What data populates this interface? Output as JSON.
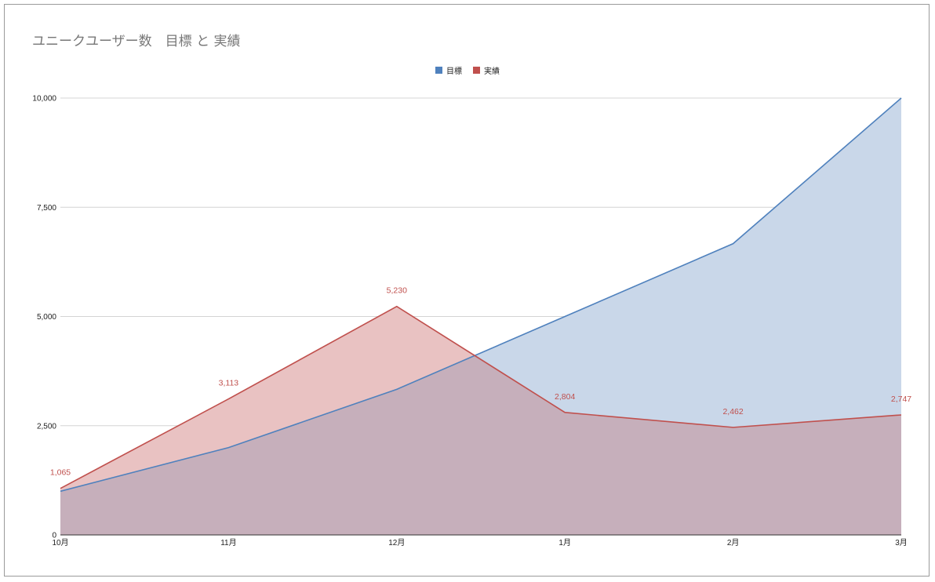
{
  "chart_data": {
    "type": "area",
    "title": "ユニークユーザー数　目標 と 実績",
    "categories": [
      "10月",
      "11月",
      "12月",
      "1月",
      "2月",
      "3月"
    ],
    "ylim": [
      0,
      10000
    ],
    "yticks": [
      0,
      2500,
      5000,
      7500,
      10000
    ],
    "ytick_labels": [
      "0",
      "2,500",
      "5,000",
      "7,500",
      "10,000"
    ],
    "grid": true,
    "legend_position": "top-center",
    "series": [
      {
        "name": "目標",
        "color": "#4f81bd",
        "fill": "#c9d7e9",
        "values": [
          1000,
          2000,
          3333,
          5000,
          6667,
          10000
        ],
        "show_labels": false,
        "labels": []
      },
      {
        "name": "実績",
        "color": "#c0504d",
        "fill": "#e9c2c2",
        "values": [
          1065,
          3113,
          5230,
          2804,
          2462,
          2747
        ],
        "show_labels": true,
        "labels": [
          "1,065",
          "3,113",
          "5,230",
          "2,804",
          "2,462",
          "2,747"
        ]
      }
    ],
    "overlap_fill": "#c6afbb"
  }
}
